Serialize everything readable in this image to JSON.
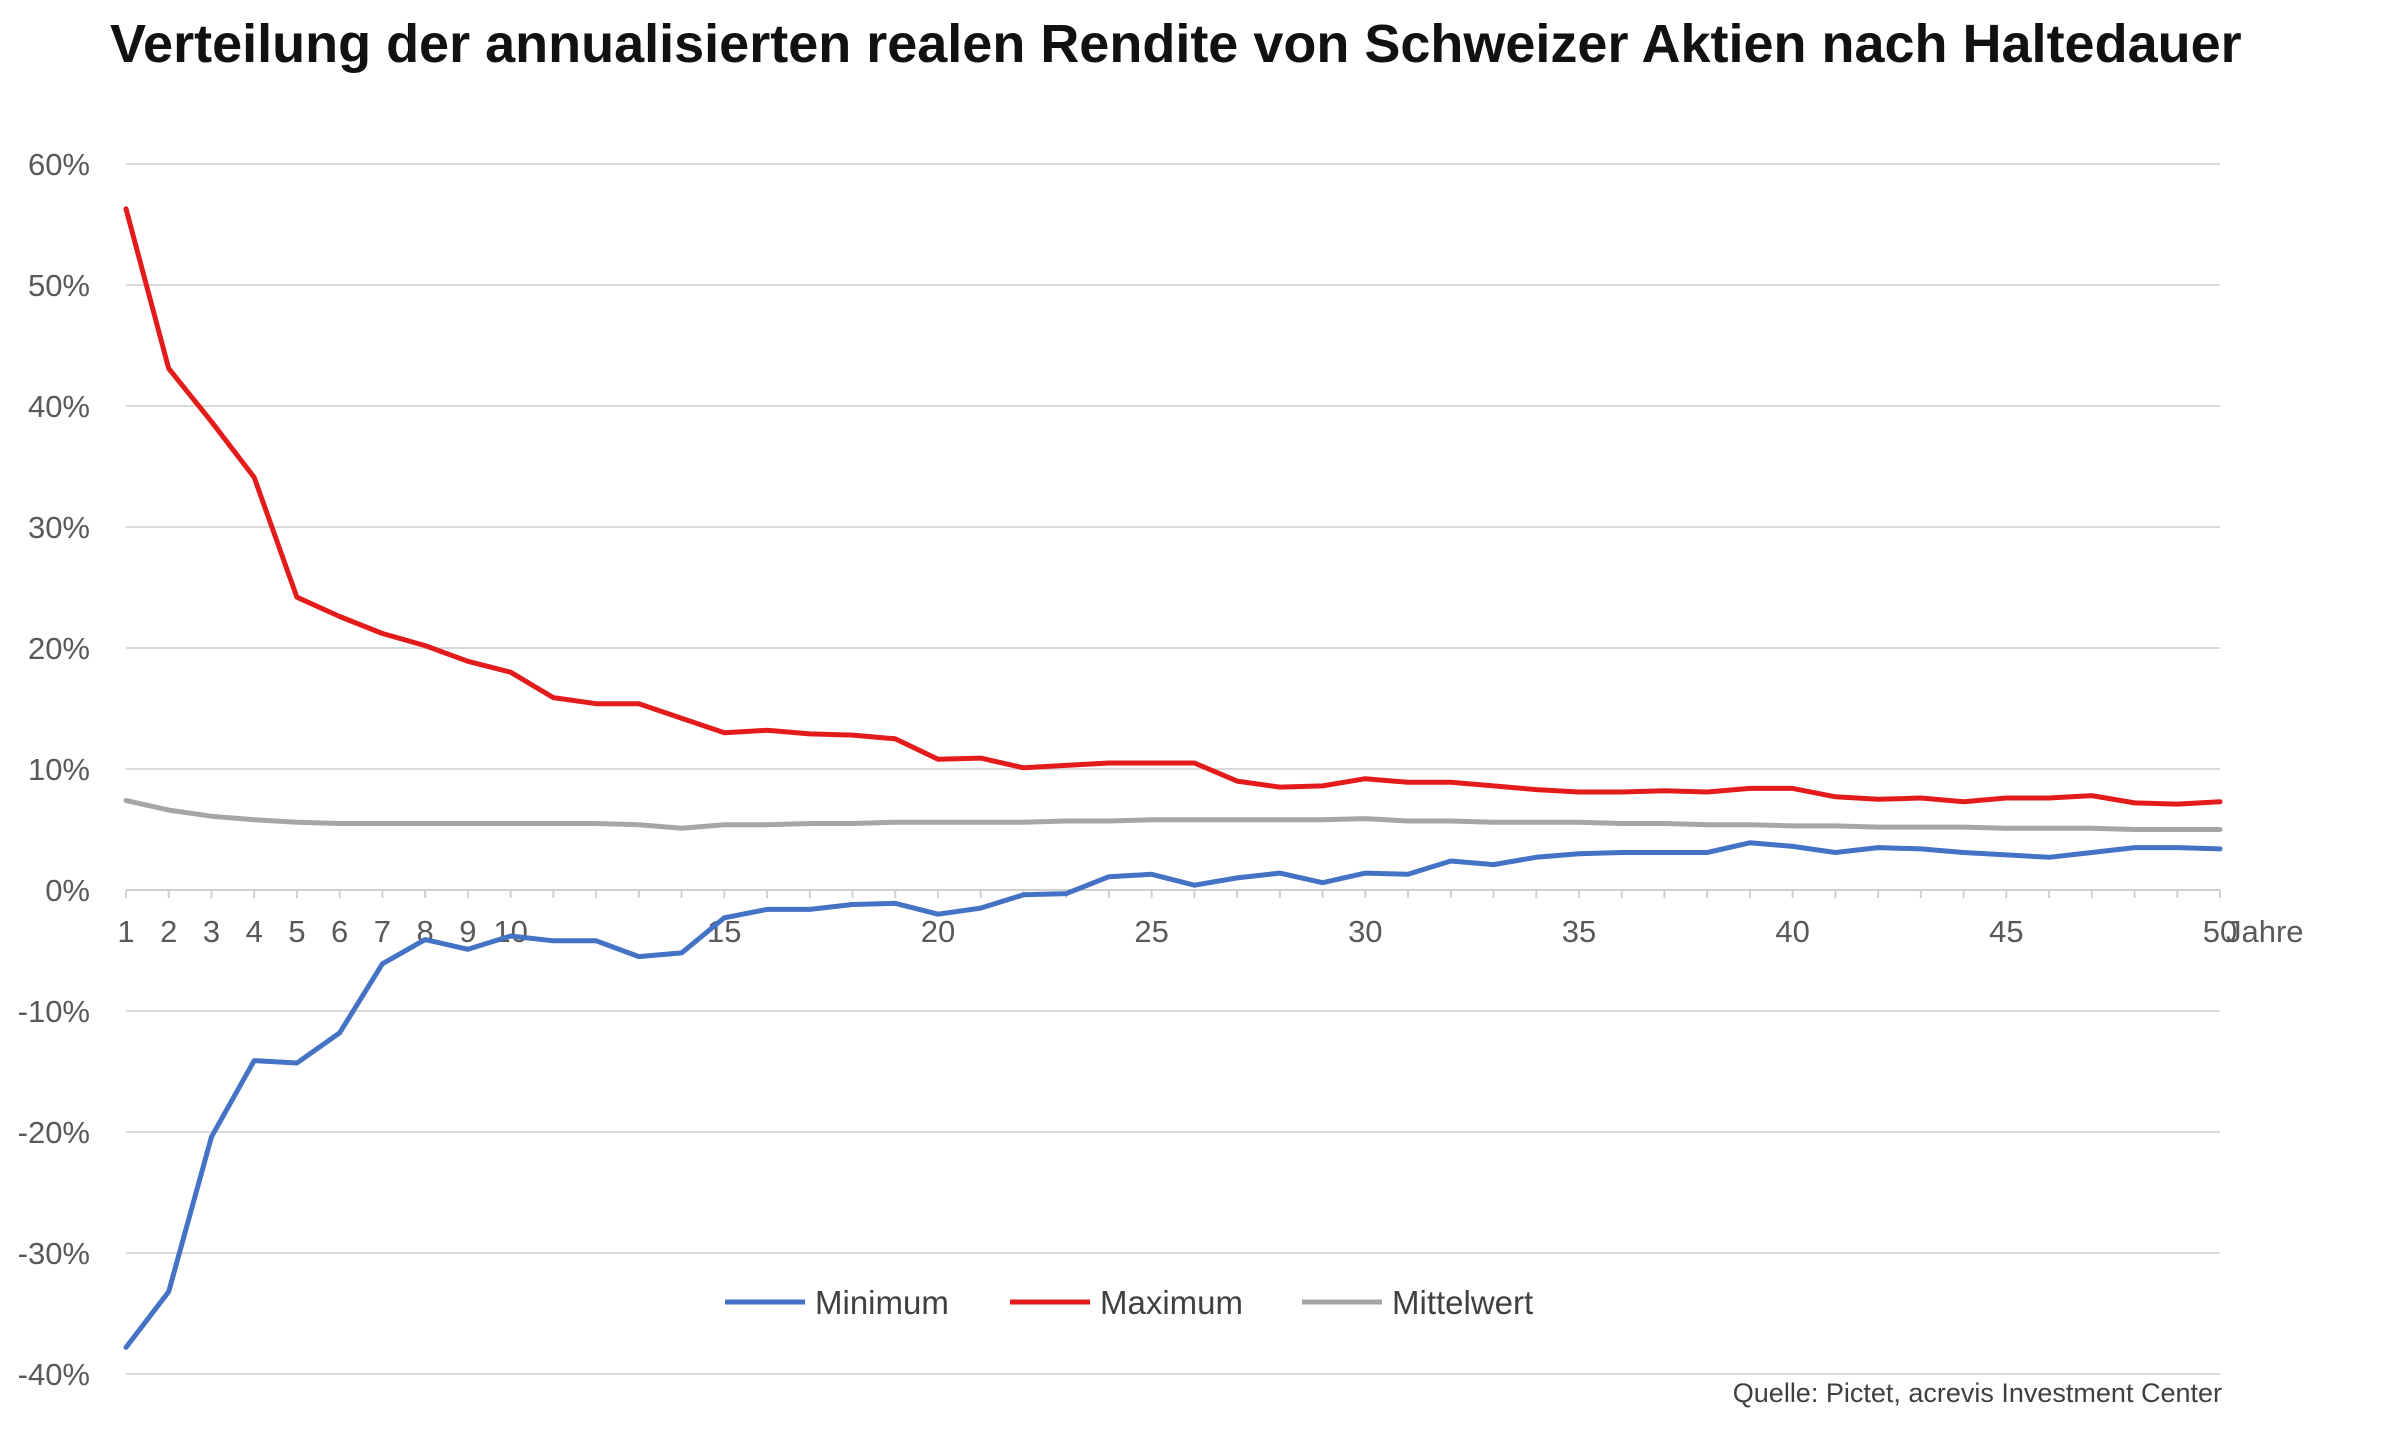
{
  "chart_data": {
    "type": "line",
    "title": "Verteilung der annualisierten realen Rendite von Schweizer Aktien nach Haltedauer",
    "xlabel": "Jahre",
    "ylabel": "",
    "x": [
      1,
      2,
      3,
      4,
      5,
      6,
      7,
      8,
      9,
      10,
      11,
      12,
      13,
      14,
      15,
      16,
      17,
      18,
      19,
      20,
      21,
      22,
      23,
      24,
      25,
      26,
      27,
      28,
      29,
      30,
      31,
      32,
      33,
      34,
      35,
      36,
      37,
      38,
      39,
      40,
      41,
      42,
      43,
      44,
      45,
      46,
      47,
      48,
      49,
      50
    ],
    "x_tick_labels": [
      "1",
      "2",
      "3",
      "4",
      "5",
      "6",
      "7",
      "8",
      "9",
      "10",
      "15",
      "20",
      "25",
      "30",
      "35",
      "40",
      "45",
      "50"
    ],
    "y_tick_labels": [
      "60%",
      "50%",
      "40%",
      "30%",
      "20%",
      "10%",
      "0%",
      "-10%",
      "-20%",
      "-30%",
      "-40%"
    ],
    "ylim": [
      -40,
      60
    ],
    "grid": true,
    "legend_position": "bottom-center",
    "series": [
      {
        "name": "Minimum",
        "color": "#4472c4",
        "values": [
          -37.8,
          -33.2,
          -20.4,
          -14.1,
          -14.3,
          -11.8,
          -6.1,
          -4.1,
          -4.9,
          -3.8,
          -4.2,
          -4.2,
          -5.5,
          -5.2,
          -2.3,
          -1.6,
          -1.6,
          -1.2,
          -1.1,
          -2.0,
          -1.5,
          -0.4,
          -0.3,
          1.1,
          1.3,
          0.4,
          1.0,
          1.4,
          0.6,
          1.4,
          1.3,
          2.4,
          2.1,
          2.7,
          3.0,
          3.1,
          3.1,
          3.1,
          3.9,
          3.6,
          3.1,
          3.5,
          3.4,
          3.1,
          2.9,
          2.7,
          3.1,
          3.5,
          3.5,
          3.4
        ]
      },
      {
        "name": "Maximum",
        "color": "#e41b1b",
        "values": [
          56.3,
          43.1,
          38.7,
          34.1,
          24.2,
          22.6,
          21.2,
          20.2,
          18.9,
          18.0,
          15.9,
          15.4,
          15.4,
          14.2,
          13.0,
          13.2,
          12.9,
          12.8,
          12.5,
          10.8,
          10.9,
          10.1,
          10.3,
          10.5,
          10.5,
          10.5,
          9.0,
          8.5,
          8.6,
          9.2,
          8.9,
          8.9,
          8.6,
          8.3,
          8.1,
          8.1,
          8.2,
          8.1,
          8.4,
          8.4,
          7.7,
          7.5,
          7.6,
          7.3,
          7.6,
          7.6,
          7.8,
          7.2,
          7.1,
          7.3
        ]
      },
      {
        "name": "Mittelwert",
        "color": "#a6a6a6",
        "values": [
          7.4,
          6.6,
          6.1,
          5.8,
          5.6,
          5.5,
          5.5,
          5.5,
          5.5,
          5.5,
          5.5,
          5.5,
          5.4,
          5.1,
          5.4,
          5.4,
          5.5,
          5.5,
          5.6,
          5.6,
          5.6,
          5.6,
          5.7,
          5.7,
          5.8,
          5.8,
          5.8,
          5.8,
          5.8,
          5.9,
          5.7,
          5.7,
          5.6,
          5.6,
          5.6,
          5.5,
          5.5,
          5.4,
          5.4,
          5.3,
          5.3,
          5.2,
          5.2,
          5.2,
          5.1,
          5.1,
          5.1,
          5.0,
          5.0,
          5.0
        ]
      }
    ],
    "source": "Quelle: Pictet, acrevis Investment Center"
  }
}
